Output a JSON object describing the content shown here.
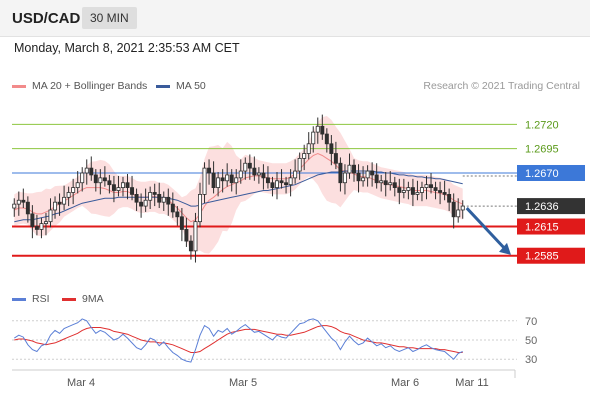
{
  "header": {
    "pair": "USD/CAD",
    "timeframe": "30 MIN"
  },
  "timestamp": "Monday, March 8, 2021 2:35:53 AM CET",
  "legend": [
    {
      "label": "MA 20 + Bollinger Bands",
      "color": "#f28b8b"
    },
    {
      "label": "MA 50",
      "color": "#3a5b9b"
    }
  ],
  "credit": "Research © 2021 Trading Central",
  "indicator_legend": [
    {
      "label": "RSI",
      "color": "#5b7fd6"
    },
    {
      "label": "9MA",
      "color": "#e03030"
    }
  ],
  "colors": {
    "candle": "#2f2f2f",
    "bollinger_fill": "#fbd9d9",
    "resistance": "#8dc63f",
    "resistance_text": "#5a9a1a",
    "pivot": "#3c78d8",
    "support": "#e01a1a",
    "last": "#333333",
    "arrow": "#2f5f9e",
    "rsi": "#5b7fd6",
    "rsi_ma": "#e03030"
  },
  "chart_data": [
    {
      "type": "candlestick",
      "title": "USD/CAD",
      "ylim": [
        1.2558,
        1.2745
      ],
      "x_ticks": [
        "Mar 4",
        "Mar 5",
        "Mar 6",
        "Mar 11"
      ],
      "levels": [
        {
          "value": 1.272,
          "label": "1.2720",
          "kind": "resistance"
        },
        {
          "value": 1.2695,
          "label": "1.2695",
          "kind": "resistance"
        },
        {
          "value": 1.267,
          "label": "1.2670",
          "kind": "pivot"
        },
        {
          "value": 1.2636,
          "label": "1.2636",
          "kind": "last"
        },
        {
          "value": 1.2615,
          "label": "1.2615",
          "kind": "support"
        },
        {
          "value": 1.2585,
          "label": "1.2585",
          "kind": "support"
        }
      ],
      "forecast": {
        "from": 1.2636,
        "to": 1.259,
        "direction": "down"
      },
      "closes": [
        1.2638,
        1.2642,
        1.264,
        1.2628,
        1.2615,
        1.2612,
        1.2618,
        1.262,
        1.2632,
        1.264,
        1.2638,
        1.2645,
        1.265,
        1.2655,
        1.266,
        1.267,
        1.2675,
        1.2668,
        1.266,
        1.2665,
        1.2662,
        1.2658,
        1.2652,
        1.2655,
        1.266,
        1.2655,
        1.2648,
        1.264,
        1.2636,
        1.2642,
        1.265,
        1.2648,
        1.264,
        1.2645,
        1.2638,
        1.263,
        1.2625,
        1.2612,
        1.26,
        1.259,
        1.262,
        1.2648,
        1.2675,
        1.267,
        1.2655,
        1.2665,
        1.2662,
        1.2668,
        1.266,
        1.2665,
        1.2672,
        1.268,
        1.2675,
        1.2668,
        1.267,
        1.2665,
        1.266,
        1.2655,
        1.2662,
        1.266,
        1.2658,
        1.2665,
        1.2672,
        1.2685,
        1.269,
        1.27,
        1.2712,
        1.2718,
        1.271,
        1.27,
        1.269,
        1.268,
        1.266,
        1.267,
        1.2678,
        1.267,
        1.2662,
        1.2665,
        1.2672,
        1.2668,
        1.266,
        1.2662,
        1.2658,
        1.266,
        1.2655,
        1.265,
        1.2652,
        1.2655,
        1.2648,
        1.265,
        1.2655,
        1.2658,
        1.2655,
        1.2652,
        1.265,
        1.2648,
        1.264,
        1.2625,
        1.2632,
        1.2636
      ],
      "ma20": [
        1.2632,
        1.2634,
        1.2634,
        1.2633,
        1.263,
        1.2628,
        1.2628,
        1.263,
        1.2632,
        1.2636,
        1.2638,
        1.2641,
        1.2644,
        1.2647,
        1.265,
        1.2653,
        1.2655,
        1.2655,
        1.2655,
        1.2655,
        1.2654,
        1.2652,
        1.265,
        1.265,
        1.2651,
        1.2651,
        1.2649,
        1.2646,
        1.2645,
        1.2645,
        1.2646,
        1.2646,
        1.2644,
        1.2644,
        1.2642,
        1.2638,
        1.2634,
        1.2629,
        1.2624,
        1.262,
        1.2622,
        1.2628,
        1.2636,
        1.2642,
        1.2645,
        1.2649,
        1.2653,
        1.2656,
        1.2658,
        1.266,
        1.2662,
        1.2665,
        1.2666,
        1.2667,
        1.2667,
        1.2666,
        1.2665,
        1.2664,
        1.2664,
        1.2664,
        1.2664,
        1.2666,
        1.2669,
        1.2674,
        1.2679,
        1.2684,
        1.2688,
        1.269,
        1.2688,
        1.2685,
        1.2682,
        1.2678,
        1.2673,
        1.2672,
        1.2671,
        1.2669,
        1.2667,
        1.2666,
        1.2666,
        1.2664,
        1.2662,
        1.266,
        1.2659,
        1.2658,
        1.2657,
        1.2656,
        1.2655,
        1.2654,
        1.2652,
        1.2652,
        1.2652,
        1.2652,
        1.2651,
        1.265,
        1.2649,
        1.2648,
        1.2646,
        1.2642,
        1.264,
        1.2638
      ],
      "ma50": [
        1.262,
        1.2621,
        1.2622,
        1.2622,
        1.2622,
        1.2623,
        1.2624,
        1.2625,
        1.2626,
        1.2628,
        1.2629,
        1.2631,
        1.2633,
        1.2635,
        1.2637,
        1.2639,
        1.264,
        1.2641,
        1.2642,
        1.2643,
        1.2644,
        1.2644,
        1.2644,
        1.2645,
        1.2645,
        1.2645,
        1.2645,
        1.2645,
        1.2645,
        1.2645,
        1.2645,
        1.2645,
        1.2645,
        1.2645,
        1.2644,
        1.2643,
        1.2642,
        1.264,
        1.2638,
        1.2636,
        1.2636,
        1.2637,
        1.2639,
        1.264,
        1.2641,
        1.2642,
        1.2643,
        1.2644,
        1.2645,
        1.2646,
        1.2647,
        1.2648,
        1.2649,
        1.265,
        1.2651,
        1.2652,
        1.2652,
        1.2653,
        1.2654,
        1.2655,
        1.2656,
        1.2657,
        1.2658,
        1.266,
        1.2662,
        1.2664,
        1.2666,
        1.2668,
        1.2669,
        1.267,
        1.2671,
        1.2671,
        1.2671,
        1.2672,
        1.2672,
        1.2672,
        1.2672,
        1.2672,
        1.2672,
        1.2672,
        1.2671,
        1.2671,
        1.267,
        1.267,
        1.2669,
        1.2668,
        1.2668,
        1.2667,
        1.2667,
        1.2666,
        1.2666,
        1.2665,
        1.2665,
        1.2664,
        1.2664,
        1.2663,
        1.2662,
        1.2661,
        1.266,
        1.2659
      ]
    },
    {
      "type": "line",
      "title": "RSI",
      "ylim": [
        25,
        75
      ],
      "y_ticks": [
        70,
        50,
        30
      ],
      "rsi": [
        52,
        55,
        53,
        45,
        40,
        38,
        44,
        46,
        55,
        60,
        57,
        62,
        64,
        66,
        68,
        72,
        70,
        63,
        57,
        60,
        58,
        54,
        50,
        52,
        56,
        52,
        47,
        42,
        40,
        45,
        52,
        50,
        44,
        48,
        42,
        37,
        34,
        30,
        28,
        27,
        40,
        55,
        65,
        62,
        54,
        60,
        58,
        62,
        56,
        59,
        63,
        66,
        62,
        58,
        59,
        56,
        53,
        50,
        55,
        53,
        52,
        57,
        62,
        67,
        68,
        71,
        72,
        70,
        64,
        58,
        52,
        48,
        40,
        48,
        54,
        49,
        45,
        47,
        52,
        48,
        44,
        46,
        42,
        44,
        40,
        38,
        40,
        42,
        38,
        40,
        43,
        45,
        42,
        40,
        39,
        38,
        34,
        30,
        36,
        38
      ],
      "rsi_ma": [
        50,
        51,
        51,
        50,
        49,
        47,
        46,
        45,
        46,
        47,
        49,
        51,
        53,
        55,
        57,
        60,
        62,
        63,
        63,
        63,
        62,
        61,
        59,
        58,
        57,
        56,
        54,
        52,
        50,
        49,
        48,
        48,
        47,
        47,
        46,
        45,
        43,
        41,
        39,
        37,
        37,
        38,
        41,
        44,
        47,
        50,
        53,
        56,
        58,
        59,
        60,
        61,
        61,
        61,
        60,
        59,
        58,
        57,
        56,
        56,
        55,
        55,
        56,
        57,
        58,
        60,
        62,
        64,
        65,
        65,
        64,
        62,
        59,
        57,
        56,
        54,
        52,
        50,
        49,
        48,
        47,
        47,
        46,
        45,
        44,
        43,
        43,
        42,
        42,
        41,
        41,
        41,
        41,
        41,
        40,
        40,
        39,
        38,
        37,
        37
      ]
    }
  ]
}
